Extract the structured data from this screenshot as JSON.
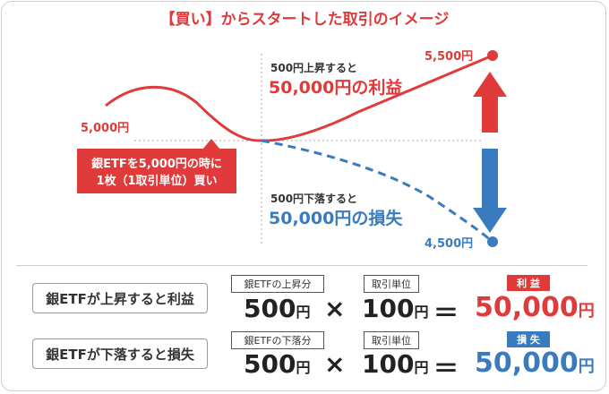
{
  "title": "【買い】からスタートした取引のイメージ",
  "chart": {
    "start_price": "5,000円",
    "up_price": "5,500円",
    "down_price": "4,500円",
    "up_note": "500円上昇すると",
    "up_result": "50,000円の利益",
    "down_note": "500円下落すると",
    "down_result": "50,000円の損失",
    "callout_line1": "銀ETFを5,000円の時に",
    "callout_line2": "1枚（1取引単位）買い",
    "colors": {
      "red": "#e03a3a",
      "blue": "#3a7bbf"
    }
  },
  "rows": [
    {
      "label": "銀ETFが上昇すると利益",
      "box1": "銀ETFの上昇分",
      "box2": "取引単位",
      "value1": "500",
      "unit1": "円",
      "times": "×",
      "value2": "100",
      "unit2": "円",
      "equals": "＝",
      "badge": "利 益",
      "result": "50,000",
      "result_unit": "円"
    },
    {
      "label": "銀ETFが下落すると損失",
      "box1": "銀ETFの下落分",
      "box2": "取引単位",
      "value1": "500",
      "unit1": "円",
      "times": "×",
      "value2": "100",
      "unit2": "円",
      "equals": "＝",
      "badge": "損 失",
      "result": "50,000",
      "result_unit": "円"
    }
  ]
}
